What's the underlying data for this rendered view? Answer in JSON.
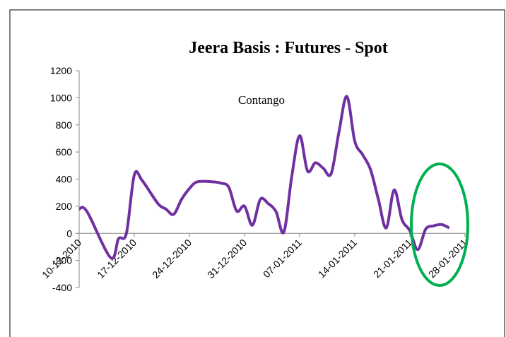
{
  "chart_data": {
    "type": "line",
    "title": "Jeera Basis : Futures - Spot",
    "annotations": [
      "Contango"
    ],
    "x": [
      "2010-12-10",
      "2010-12-11",
      "2010-12-14",
      "2010-12-15",
      "2010-12-16",
      "2010-12-17",
      "2010-12-18",
      "2010-12-20",
      "2010-12-21",
      "2010-12-22",
      "2010-12-23",
      "2010-12-24",
      "2010-12-25",
      "2010-12-27",
      "2010-12-28",
      "2010-12-29",
      "2010-12-30",
      "2010-12-31",
      "2011-01-01",
      "2011-01-02",
      "2011-01-03",
      "2011-01-04",
      "2011-01-05",
      "2011-01-06",
      "2011-01-07",
      "2011-01-08",
      "2011-01-09",
      "2011-01-10",
      "2011-01-11",
      "2011-01-12",
      "2011-01-13",
      "2011-01-14",
      "2011-01-15",
      "2011-01-16",
      "2011-01-17",
      "2011-01-18",
      "2011-01-19",
      "2011-01-20",
      "2011-01-21",
      "2011-01-22",
      "2011-01-23",
      "2011-01-24",
      "2011-01-25",
      "2011-01-26"
    ],
    "series": [
      {
        "name": "Basis",
        "color": "#7030a0",
        "values": [
          180,
          160,
          -180,
          -40,
          0,
          430,
          390,
          220,
          180,
          140,
          250,
          330,
          380,
          380,
          370,
          340,
          165,
          200,
          60,
          250,
          220,
          160,
          10,
          420,
          720,
          460,
          520,
          480,
          440,
          750,
          1010,
          680,
          580,
          470,
          250,
          40,
          320,
          100,
          20,
          -120,
          30,
          55,
          65,
          40
        ]
      }
    ],
    "xlim": [
      "2010-12-10",
      "2011-01-28"
    ],
    "xticks": [
      {
        "value": "2010-12-10",
        "label": "10-12-2010"
      },
      {
        "value": "2010-12-17",
        "label": "17-12-2010"
      },
      {
        "value": "2010-12-24",
        "label": "24-12-2010"
      },
      {
        "value": "2010-12-31",
        "label": "31-12-2010"
      },
      {
        "value": "2011-01-07",
        "label": "07-01-2011"
      },
      {
        "value": "2011-01-14",
        "label": "14-01-2011"
      },
      {
        "value": "2011-01-21",
        "label": "21-01-2011"
      },
      {
        "value": "2011-01-28",
        "label": "28-01-2011"
      }
    ],
    "ylim": [
      -400,
      1200
    ],
    "yticks": [
      -400,
      -200,
      0,
      200,
      400,
      600,
      800,
      1000,
      1200
    ],
    "grid": false
  }
}
